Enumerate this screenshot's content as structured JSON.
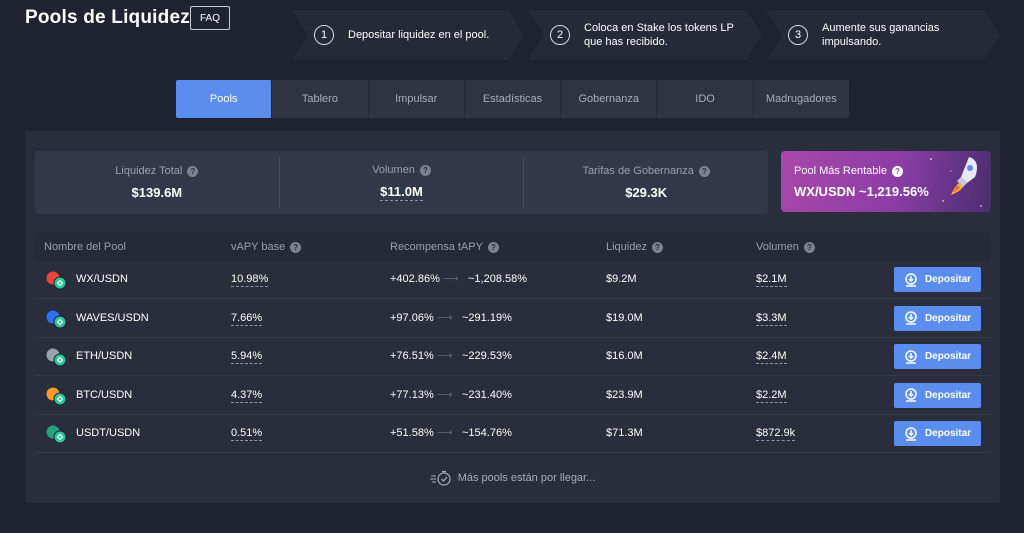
{
  "header": {
    "title": "Pools de Liquidez",
    "faq_label": "FAQ"
  },
  "steps": [
    {
      "num": "1",
      "text": "Depositar liquidez en el pool."
    },
    {
      "num": "2",
      "text": "Coloca en Stake los tokens LP que has recibido."
    },
    {
      "num": "3",
      "text": "Aumente sus ganancias impulsando."
    }
  ],
  "tabs": [
    "Pools",
    "Tablero",
    "Impulsar",
    "Estadísticas",
    "Gobernanza",
    "IDO",
    "Madrugadores"
  ],
  "active_tab": "Pools",
  "stats": [
    {
      "label": "Liquidez Total",
      "value": "$139.6M"
    },
    {
      "label": "Volumen",
      "value": "$11.0M"
    },
    {
      "label": "Tarifas de Gobernanza",
      "value": "$29.3K"
    }
  ],
  "best_pool": {
    "label": "Pool Más Rentable",
    "value": "WX/USDN ~1,219.56%"
  },
  "table": {
    "headers": {
      "name": "Nombre del Pool",
      "vapy": "vAPY base",
      "reward": "Recompensa tAPY",
      "liquidity": "Liquidez",
      "volume": "Volumen"
    },
    "rows": [
      {
        "name": "WX/USDN",
        "vapy": "10.98%",
        "reward_from": "+402.86%",
        "reward_to": "~1,208.58%",
        "liquidity": "$9.2M",
        "volume": "$2.1M",
        "icon": "wx-usdn-icon",
        "color": "#e8453c"
      },
      {
        "name": "WAVES/USDN",
        "vapy": "7.66%",
        "reward_from": "+97.06%",
        "reward_to": "~291.19%",
        "liquidity": "$19.0M",
        "volume": "$3.3M",
        "icon": "waves-usdn-icon",
        "color": "#2f6ff0"
      },
      {
        "name": "ETH/USDN",
        "vapy": "5.94%",
        "reward_from": "+76.51%",
        "reward_to": "~229.53%",
        "liquidity": "$16.0M",
        "volume": "$2.4M",
        "icon": "eth-usdn-icon",
        "color": "#9aa0b0"
      },
      {
        "name": "BTC/USDN",
        "vapy": "4.37%",
        "reward_from": "+77.13%",
        "reward_to": "~231.40%",
        "liquidity": "$23.9M",
        "volume": "$2.2M",
        "icon": "btc-usdn-icon",
        "color": "#f39a2a"
      },
      {
        "name": "USDT/USDN",
        "vapy": "0.51%",
        "reward_from": "+51.58%",
        "reward_to": "~154.76%",
        "liquidity": "$71.3M",
        "volume": "$872.9k",
        "icon": "usdt-usdn-icon",
        "color": "#27a17c"
      }
    ],
    "deposit_label": "Depositar"
  },
  "more_pools": "Más pools están por llegar...",
  "colors": {
    "accent": "#5b8def",
    "background": "#1f2230",
    "panel": "#2a2d3b",
    "usdn": "#2fc59b"
  }
}
